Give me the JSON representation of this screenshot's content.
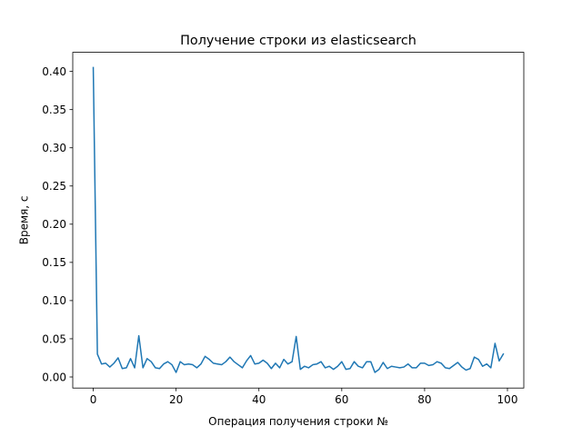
{
  "chart_data": {
    "type": "line",
    "title": "Получение строки из elasticsearch",
    "xlabel": "Операция получения строки №",
    "ylabel": "Время, с",
    "xlim": [
      -4.95,
      103.95
    ],
    "ylim": [
      -0.0145,
      0.425
    ],
    "xticks": [
      0,
      20,
      40,
      60,
      80,
      100
    ],
    "xtick_labels": [
      "0",
      "20",
      "40",
      "60",
      "80",
      "100"
    ],
    "yticks": [
      0.0,
      0.05,
      0.1,
      0.15,
      0.2,
      0.25,
      0.3,
      0.35,
      0.4
    ],
    "ytick_labels": [
      "0.00",
      "0.05",
      "0.10",
      "0.15",
      "0.20",
      "0.25",
      "0.30",
      "0.35",
      "0.40"
    ],
    "grid": false,
    "legend": "none",
    "series": [
      {
        "color": "#1f77b4",
        "x": [
          0,
          1,
          2,
          3,
          4,
          5,
          6,
          7,
          8,
          9,
          10,
          11,
          12,
          13,
          14,
          15,
          16,
          17,
          18,
          19,
          20,
          21,
          22,
          23,
          24,
          25,
          26,
          27,
          28,
          29,
          30,
          31,
          32,
          33,
          34,
          35,
          36,
          37,
          38,
          39,
          40,
          41,
          42,
          43,
          44,
          45,
          46,
          47,
          48,
          49,
          50,
          51,
          52,
          53,
          54,
          55,
          56,
          57,
          58,
          59,
          60,
          61,
          62,
          63,
          64,
          65,
          66,
          67,
          68,
          69,
          70,
          71,
          72,
          73,
          74,
          75,
          76,
          77,
          78,
          79,
          80,
          81,
          82,
          83,
          84,
          85,
          86,
          87,
          88,
          89,
          90,
          91,
          92,
          93,
          94,
          95,
          96,
          97,
          98,
          99
        ],
        "values": [
          0.405,
          0.03,
          0.017,
          0.018,
          0.013,
          0.018,
          0.025,
          0.011,
          0.012,
          0.024,
          0.012,
          0.054,
          0.012,
          0.024,
          0.02,
          0.012,
          0.011,
          0.017,
          0.02,
          0.016,
          0.006,
          0.02,
          0.016,
          0.017,
          0.016,
          0.012,
          0.017,
          0.027,
          0.023,
          0.018,
          0.017,
          0.016,
          0.02,
          0.026,
          0.02,
          0.016,
          0.012,
          0.021,
          0.028,
          0.017,
          0.018,
          0.022,
          0.018,
          0.011,
          0.018,
          0.012,
          0.023,
          0.017,
          0.02,
          0.053,
          0.01,
          0.014,
          0.012,
          0.016,
          0.017,
          0.02,
          0.012,
          0.014,
          0.01,
          0.014,
          0.02,
          0.01,
          0.011,
          0.02,
          0.014,
          0.012,
          0.02,
          0.02,
          0.006,
          0.01,
          0.019,
          0.011,
          0.014,
          0.013,
          0.012,
          0.013,
          0.017,
          0.012,
          0.012,
          0.018,
          0.018,
          0.015,
          0.016,
          0.02,
          0.018,
          0.012,
          0.011,
          0.015,
          0.019,
          0.013,
          0.009,
          0.011,
          0.026,
          0.023,
          0.014,
          0.017,
          0.012,
          0.044,
          0.021,
          0.03
        ]
      }
    ]
  }
}
